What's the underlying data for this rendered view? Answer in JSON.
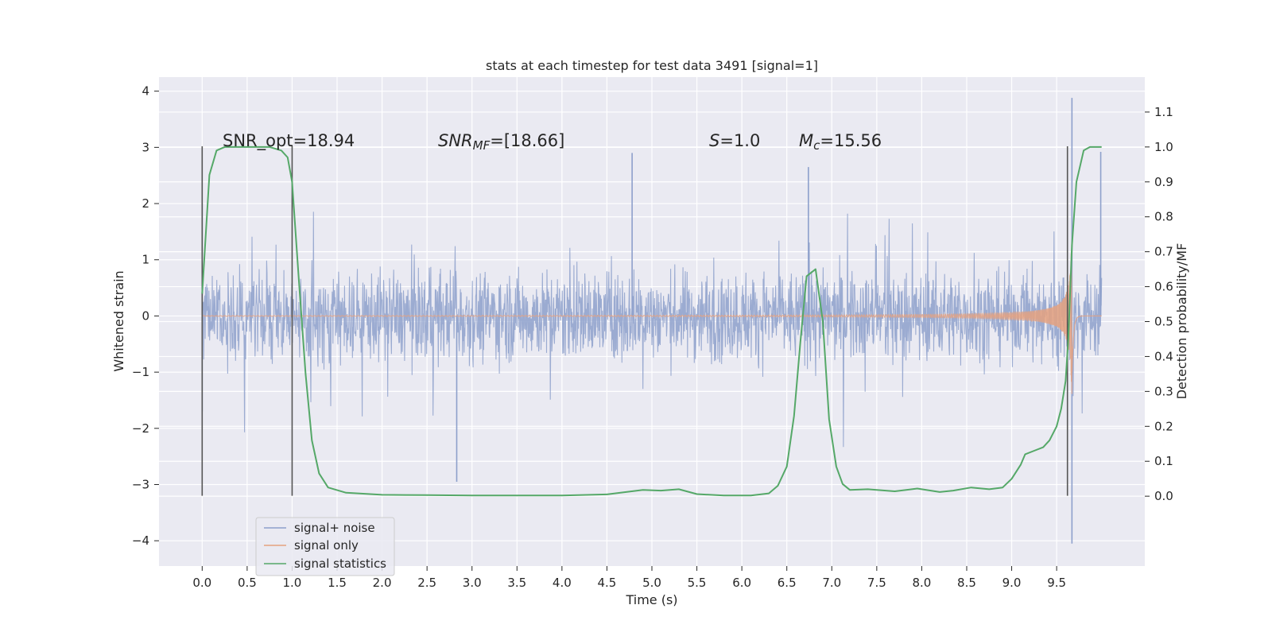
{
  "chart_data": {
    "type": "line",
    "title": "stats at each timestep for test data 3491 [signal=1]",
    "xlabel": "Time (s)",
    "ylabel": "Whitened strain",
    "ylabel_right": "Detection probability/MF",
    "xlim": [
      -0.48,
      10.48
    ],
    "ylim": [
      -4.45,
      4.25
    ],
    "ylim_right": [
      -0.2,
      1.2
    ],
    "x_ticks": [
      "0.0",
      "0.5",
      "1.0",
      "1.5",
      "2.0",
      "2.5",
      "3.0",
      "3.5",
      "4.0",
      "4.5",
      "5.0",
      "5.5",
      "6.0",
      "6.5",
      "7.0",
      "7.5",
      "8.0",
      "8.5",
      "9.0",
      "9.5"
    ],
    "y_ticks": [
      "4",
      "3",
      "2",
      "1",
      "0",
      "−1",
      "−2",
      "−3",
      "−4"
    ],
    "y_right_ticks": [
      "1.1",
      "1.0",
      "0.9",
      "0.8",
      "0.7",
      "0.6",
      "0.5",
      "0.4",
      "0.3",
      "0.2",
      "0.1",
      "0.0"
    ],
    "grid": true,
    "legend_placement": "lower-left",
    "annotations": {
      "snr_opt": "SNR_opt=18.94",
      "snr_mf_sym": "SNR",
      "snr_mf_sub": "MF",
      "snr_mf_val": "=[18.66]",
      "s_sym": "S",
      "s_val": "=1.0",
      "mc_sym": "M",
      "mc_sub": "c",
      "mc_val": "=15.56"
    },
    "vertical_markers": [
      0.0,
      1.0,
      9.62
    ],
    "series": [
      {
        "name": "signal+ noise",
        "color": "#8da0cb",
        "envelope": {
          "x": [
            0.0,
            1.0,
            2.0,
            3.0,
            4.0,
            5.0,
            6.0,
            7.0,
            8.0,
            9.0,
            9.5,
            9.6,
            9.67,
            9.7,
            10.0
          ],
          "typical_range": [
            -1.6,
            1.6
          ],
          "peaks": [
            {
              "x": 0.0,
              "y": 2.0
            },
            {
              "x": 0.0,
              "y": -1.7
            },
            {
              "x": 2.83,
              "y": -2.95
            },
            {
              "x": 4.78,
              "y": 2.9
            },
            {
              "x": 6.74,
              "y": 2.65
            },
            {
              "x": 9.67,
              "y": 3.88
            },
            {
              "x": 9.67,
              "y": -4.05
            },
            {
              "x": 9.99,
              "y": 2.92
            }
          ]
        }
      },
      {
        "name": "signal only",
        "color": "#e5a17f",
        "chirp": {
          "merger_time": 9.67,
          "amplitude_at_merger": 3.1,
          "start_amplitude": 0.04
        }
      },
      {
        "name": "signal statistics",
        "color": "#55a868",
        "axis": "right",
        "x": [
          0.0,
          0.08,
          0.16,
          0.25,
          0.5,
          0.75,
          0.88,
          0.95,
          1.0,
          1.08,
          1.15,
          1.22,
          1.3,
          1.4,
          1.6,
          2.0,
          2.5,
          3.0,
          3.5,
          4.0,
          4.5,
          4.9,
          5.1,
          5.3,
          5.5,
          5.8,
          6.1,
          6.3,
          6.4,
          6.5,
          6.58,
          6.65,
          6.72,
          6.82,
          6.9,
          6.97,
          7.05,
          7.12,
          7.2,
          7.4,
          7.7,
          7.95,
          8.2,
          8.35,
          8.55,
          8.75,
          8.9,
          9.0,
          9.1,
          9.15,
          9.25,
          9.35,
          9.42,
          9.5,
          9.55,
          9.6,
          9.63,
          9.67,
          9.72,
          9.8,
          9.87,
          9.93,
          10.0
        ],
        "values": [
          0.58,
          0.92,
          0.99,
          1.0,
          1.0,
          1.0,
          0.99,
          0.97,
          0.9,
          0.6,
          0.35,
          0.16,
          0.065,
          0.025,
          0.01,
          0.004,
          0.003,
          0.002,
          0.002,
          0.002,
          0.005,
          0.018,
          0.016,
          0.02,
          0.006,
          0.002,
          0.002,
          0.008,
          0.03,
          0.085,
          0.23,
          0.44,
          0.63,
          0.65,
          0.5,
          0.22,
          0.085,
          0.035,
          0.018,
          0.02,
          0.014,
          0.022,
          0.012,
          0.016,
          0.025,
          0.02,
          0.025,
          0.05,
          0.09,
          0.12,
          0.13,
          0.14,
          0.16,
          0.2,
          0.25,
          0.33,
          0.45,
          0.72,
          0.9,
          0.99,
          1.0,
          1.0,
          1.0
        ]
      }
    ]
  }
}
